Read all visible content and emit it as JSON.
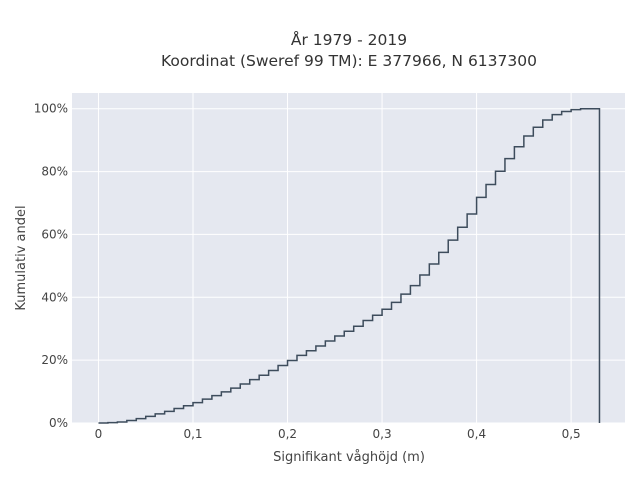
{
  "chart_data": {
    "type": "line",
    "step": true,
    "title": [
      "År 1979 - 2019",
      "Koordinat (Sweref 99 TM): E 377966, N 6137300"
    ],
    "xlabel": "Signifikant våghöjd (m)",
    "ylabel": "Kumulativ andel",
    "xlim": [
      -0.028,
      0.557
    ],
    "ylim": [
      0,
      1.05
    ],
    "x_ticks": [
      0,
      0.1,
      0.2,
      0.3,
      0.4,
      0.5
    ],
    "x_tick_labels": [
      "0",
      "0,1",
      "0,2",
      "0,3",
      "0,4",
      "0,5"
    ],
    "y_ticks": [
      0,
      0.2,
      0.4,
      0.6,
      0.8,
      1.0
    ],
    "y_tick_labels": [
      "0%",
      "20%",
      "40%",
      "60%",
      "80%",
      "100%"
    ],
    "grid": true,
    "plot_background": "#e5e8f0",
    "grid_color": "#ffffff",
    "line_color": "#3d4c5c",
    "series": [
      {
        "x": [
          0,
          0.01,
          0.02,
          0.03,
          0.04,
          0.05,
          0.06,
          0.07,
          0.08,
          0.09,
          0.1,
          0.11,
          0.12,
          0.13,
          0.14,
          0.15,
          0.16,
          0.17,
          0.18,
          0.19,
          0.2,
          0.21,
          0.22,
          0.23,
          0.24,
          0.25,
          0.26,
          0.27,
          0.28,
          0.29,
          0.3,
          0.31,
          0.32,
          0.33,
          0.34,
          0.35,
          0.36,
          0.37,
          0.38,
          0.39,
          0.4,
          0.41,
          0.42,
          0.43,
          0.44,
          0.45,
          0.46,
          0.47,
          0.48,
          0.49,
          0.5,
          0.51,
          0.53
        ],
        "y": [
          0,
          0.001,
          0.003,
          0.008,
          0.014,
          0.021,
          0.029,
          0.037,
          0.046,
          0.055,
          0.065,
          0.076,
          0.087,
          0.099,
          0.111,
          0.124,
          0.138,
          0.152,
          0.167,
          0.183,
          0.199,
          0.215,
          0.23,
          0.245,
          0.261,
          0.277,
          0.292,
          0.308,
          0.326,
          0.343,
          0.362,
          0.384,
          0.41,
          0.437,
          0.471,
          0.506,
          0.543,
          0.582,
          0.623,
          0.665,
          0.718,
          0.759,
          0.801,
          0.841,
          0.879,
          0.913,
          0.941,
          0.964,
          0.981,
          0.991,
          0.997,
          1.0,
          1.0
        ]
      }
    ]
  }
}
